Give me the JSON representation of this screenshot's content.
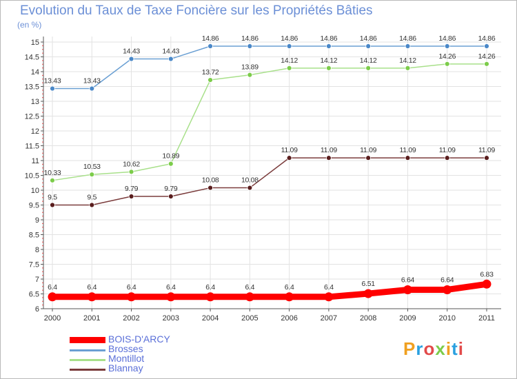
{
  "title": "Evolution du Taux de Taxe Foncière sur les Propriétés Bâties",
  "unit_label": "(en %)",
  "logo_text": "Proxiti",
  "colors": {
    "title": "#6b8fd6",
    "grid": "#e2e2e2",
    "axis": "#555555",
    "label": "#333333",
    "tick_red": "#e24a4a"
  },
  "chart_data": {
    "type": "line",
    "title": "Evolution du Taux de Taxe Foncière sur les Propriétés Bâties",
    "ylabel": "(en %)",
    "xlabel": "",
    "x": [
      "2000",
      "2001",
      "2002",
      "2003",
      "2004",
      "2005",
      "2006",
      "2007",
      "2008",
      "2009",
      "2010",
      "2011"
    ],
    "ylim": [
      6,
      15
    ],
    "yticks": [
      6,
      6.5,
      7,
      7.5,
      8,
      8.5,
      9,
      9.5,
      10,
      10.5,
      11,
      11.5,
      12,
      12.5,
      13,
      13.5,
      14,
      14.5,
      15
    ],
    "yticklabels": [
      "6",
      "6.5",
      "7",
      "7.5",
      "8",
      "8.5",
      "9",
      "9.5",
      "10",
      "10.5",
      "11",
      "11.5",
      "12",
      "12.5",
      "13",
      "13.5",
      "14",
      "14.5",
      "15"
    ],
    "grid": true,
    "legend_position": "bottom-left",
    "series": [
      {
        "name": "BOIS-D'ARCY",
        "color": "#ff0000",
        "emphasis": true,
        "values": [
          6.4,
          6.4,
          6.4,
          6.4,
          6.4,
          6.4,
          6.4,
          6.4,
          6.51,
          6.64,
          6.64,
          6.83
        ],
        "labels": [
          "6.4",
          "6.4",
          "6.4",
          "6.4",
          "6.4",
          "6.4",
          "6.4",
          "6.4",
          "6.51",
          "6.64",
          "6.64",
          "6.83"
        ]
      },
      {
        "name": "Brosses",
        "color": "#6a9fd3",
        "marker_color": "#4a88c8",
        "values": [
          13.43,
          13.43,
          14.43,
          14.43,
          14.86,
          14.86,
          14.86,
          14.86,
          14.86,
          14.86,
          14.86,
          14.86
        ],
        "labels": [
          "13.43",
          "13.43",
          "14.43",
          "14.43",
          "14.86",
          "14.86",
          "14.86",
          "14.86",
          "14.86",
          "14.86",
          "14.86",
          "14.86"
        ]
      },
      {
        "name": "Montillot",
        "color": "#a8e08a",
        "marker_color": "#7ccc4a",
        "values": [
          10.33,
          10.53,
          10.62,
          10.89,
          13.72,
          13.89,
          14.12,
          14.12,
          14.12,
          14.12,
          14.26,
          14.26
        ],
        "labels": [
          "10.33",
          "10.53",
          "10.62",
          "10.89",
          "13.72",
          "13.89",
          "14.12",
          "14.12",
          "14.12",
          "14.12",
          "14.26",
          "14.26"
        ]
      },
      {
        "name": "Blannay",
        "color": "#7a3b3b",
        "marker_color": "#5a1e1e",
        "values": [
          9.5,
          9.5,
          9.79,
          9.79,
          10.08,
          10.08,
          11.09,
          11.09,
          11.09,
          11.09,
          11.09,
          11.09
        ],
        "labels": [
          "9.5",
          "9.5",
          "9.79",
          "9.79",
          "10.08",
          "10.08",
          "11.09",
          "11.09",
          "11.09",
          "11.09",
          "11.09",
          "11.09"
        ]
      }
    ]
  }
}
